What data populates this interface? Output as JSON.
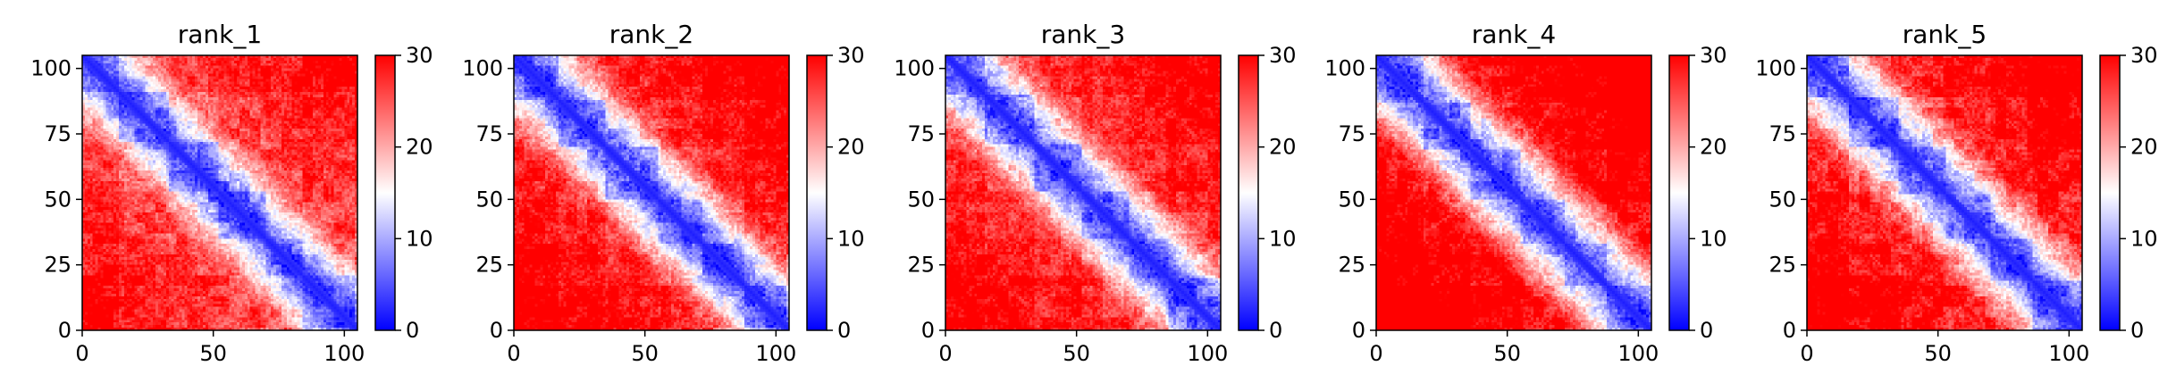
{
  "chart_data": [
    {
      "type": "heatmap",
      "title": "rank_1",
      "xticks": [
        0,
        50,
        100
      ],
      "yticks": [
        0,
        25,
        50,
        75,
        100
      ],
      "colorbar_ticks": [
        0,
        10,
        20,
        30
      ],
      "xlim": [
        0,
        105
      ],
      "ylim": [
        105,
        0
      ],
      "clim": [
        0,
        30
      ],
      "colormap": [
        "#0000ff",
        "#ffffff",
        "#ff0000"
      ],
      "domain_boundaries": [
        14,
        33,
        52,
        70,
        84
      ],
      "interdomain_level": 23
    },
    {
      "type": "heatmap",
      "title": "rank_2",
      "xticks": [
        0,
        50,
        100
      ],
      "yticks": [
        0,
        25,
        50,
        75,
        100
      ],
      "colorbar_ticks": [
        0,
        10,
        20,
        30
      ],
      "xlim": [
        0,
        105
      ],
      "ylim": [
        105,
        0
      ],
      "clim": [
        0,
        30
      ],
      "colormap": [
        "#0000ff",
        "#ffffff",
        "#ff0000"
      ],
      "domain_boundaries": [
        17,
        35,
        55,
        72,
        88
      ],
      "interdomain_level": 25
    },
    {
      "type": "heatmap",
      "title": "rank_3",
      "xticks": [
        0,
        50,
        100
      ],
      "yticks": [
        0,
        25,
        50,
        75,
        100
      ],
      "colorbar_ticks": [
        0,
        10,
        20,
        30
      ],
      "xlim": [
        0,
        105
      ],
      "ylim": [
        105,
        0
      ],
      "clim": [
        0,
        30
      ],
      "colormap": [
        "#0000ff",
        "#ffffff",
        "#ff0000"
      ],
      "domain_boundaries": [
        15,
        34,
        52,
        70,
        85
      ],
      "interdomain_level": 24
    },
    {
      "type": "heatmap",
      "title": "rank_4",
      "xticks": [
        0,
        50,
        100
      ],
      "yticks": [
        0,
        25,
        50,
        75,
        100
      ],
      "colorbar_ticks": [
        0,
        10,
        20,
        30
      ],
      "xlim": [
        0,
        105
      ],
      "ylim": [
        105,
        0
      ],
      "clim": [
        0,
        30
      ],
      "colormap": [
        "#0000ff",
        "#ffffff",
        "#ff0000"
      ],
      "domain_boundaries": [
        18,
        36,
        55,
        72,
        88
      ],
      "interdomain_level": 27
    },
    {
      "type": "heatmap",
      "title": "rank_5",
      "xticks": [
        0,
        50,
        100
      ],
      "yticks": [
        0,
        25,
        50,
        75,
        100
      ],
      "colorbar_ticks": [
        0,
        10,
        20,
        30
      ],
      "xlim": [
        0,
        105
      ],
      "ylim": [
        105,
        0
      ],
      "clim": [
        0,
        30
      ],
      "colormap": [
        "#0000ff",
        "#ffffff",
        "#ff0000"
      ],
      "domain_boundaries": [
        16,
        35,
        53,
        70,
        86
      ],
      "interdomain_level": 25
    }
  ]
}
